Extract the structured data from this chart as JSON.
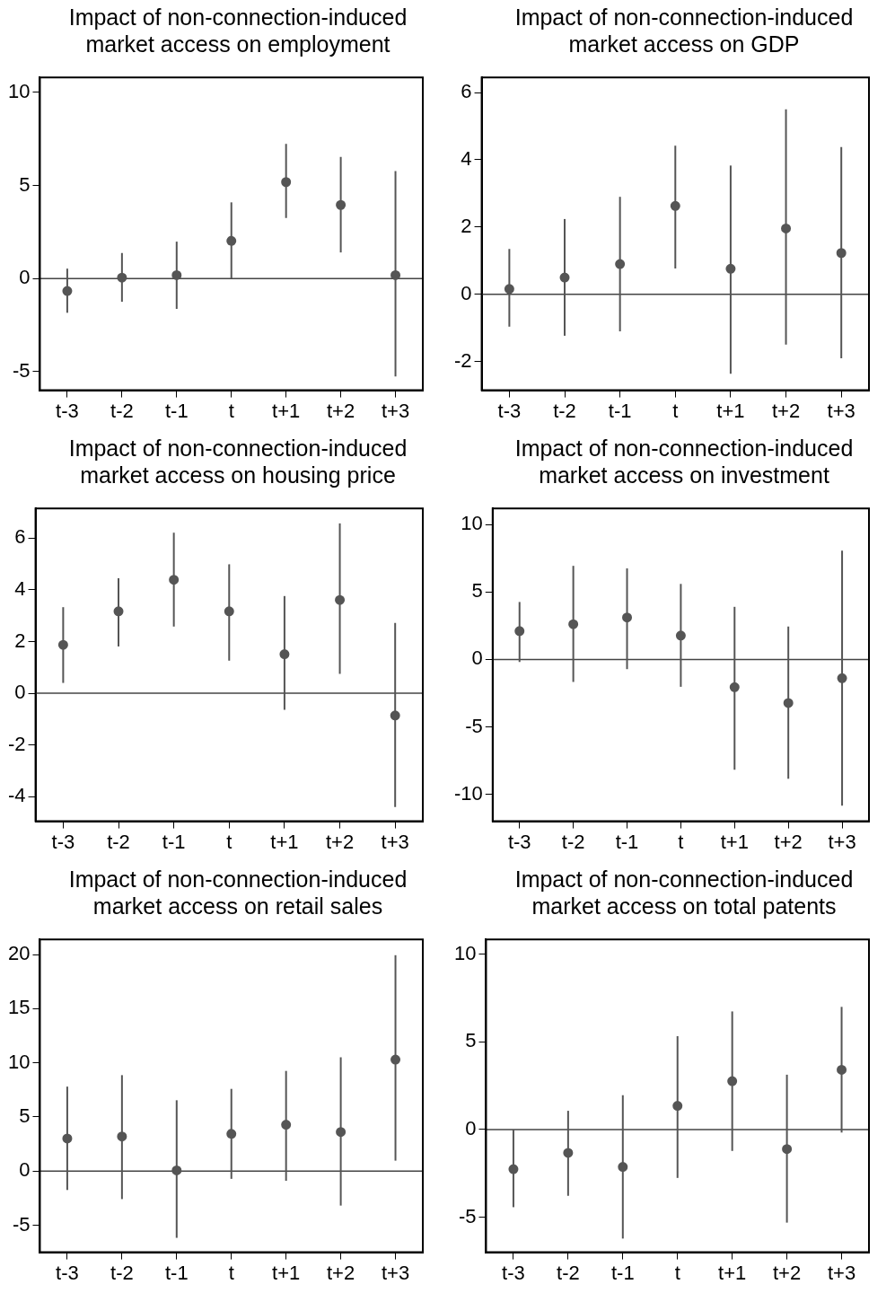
{
  "chart_data": [
    {
      "type": "scatter",
      "title": "Impact of non-connection-induced market access on employment",
      "categories": [
        "t-3",
        "t-2",
        "t-1",
        "t",
        "t+1",
        "t+2",
        "t+3"
      ],
      "marker": "circle",
      "grid": false,
      "ylim": [
        -6,
        10.8
      ],
      "yticks": [
        -5,
        0,
        5,
        10
      ],
      "ref_lines": [
        {
          "axis": "y",
          "value": 0
        }
      ],
      "series": [
        {
          "color": "#555555",
          "values": [
            -0.67,
            0.05,
            0.18,
            2.02,
            5.18,
            3.95,
            0.18
          ],
          "errors": [
            [
              -1.84,
              0.53
            ],
            [
              -1.25,
              1.37
            ],
            [
              -1.63,
              1.98
            ],
            [
              0,
              4.09
            ],
            [
              3.25,
              7.23
            ],
            [
              1.4,
              6.53
            ],
            [
              -5.26,
              5.77
            ]
          ]
        }
      ]
    },
    {
      "type": "scatter",
      "title": "Impact of non-connection-induced market access on GDP",
      "categories": [
        "t-3",
        "t-2",
        "t-1",
        "t",
        "t+1",
        "t+2",
        "t+3"
      ],
      "marker": "circle",
      "grid": false,
      "ylim": [
        -2.85,
        6.45
      ],
      "yticks": [
        -2,
        0,
        2,
        4,
        6
      ],
      "ref_lines": [
        {
          "axis": "y",
          "value": 0
        }
      ],
      "series": [
        {
          "color": "#555555",
          "values": [
            0.16,
            0.5,
            0.9,
            2.63,
            0.76,
            1.96,
            1.23
          ],
          "errors": [
            [
              -0.96,
              1.35
            ],
            [
              -1.23,
              2.24
            ],
            [
              -1.1,
              2.9
            ],
            [
              0.77,
              4.42
            ],
            [
              -2.36,
              3.83
            ],
            [
              -1.49,
              5.5
            ],
            [
              -1.9,
              4.38
            ]
          ]
        }
      ]
    },
    {
      "type": "scatter",
      "title": "Impact of non-connection-induced market access on housing price",
      "categories": [
        "t-3",
        "t-2",
        "t-1",
        "t",
        "t+1",
        "t+2",
        "t+3"
      ],
      "marker": "circle",
      "grid": false,
      "ylim": [
        -4.95,
        7.15
      ],
      "yticks": [
        -4,
        -2,
        0,
        2,
        4,
        6
      ],
      "ref_lines": [
        {
          "axis": "y",
          "value": 0
        }
      ],
      "series": [
        {
          "color": "#555555",
          "values": [
            1.87,
            3.17,
            4.39,
            3.17,
            1.51,
            3.61,
            -0.86
          ],
          "errors": [
            [
              0.4,
              3.33
            ],
            [
              1.81,
              4.45
            ],
            [
              2.58,
              6.21
            ],
            [
              1.26,
              4.99
            ],
            [
              -0.64,
              3.76
            ],
            [
              0.75,
              6.57
            ],
            [
              -4.4,
              2.72
            ]
          ]
        }
      ]
    },
    {
      "type": "scatter",
      "title": "Impact of non-connection-induced market access on investment",
      "categories": [
        "t-3",
        "t-2",
        "t-1",
        "t",
        "t+1",
        "t+2",
        "t+3"
      ],
      "marker": "circle",
      "grid": false,
      "ylim": [
        -12,
        11.2
      ],
      "yticks": [
        -10,
        -5,
        0,
        5,
        10
      ],
      "ref_lines": [
        {
          "axis": "y",
          "value": 0
        }
      ],
      "series": [
        {
          "color": "#555555",
          "values": [
            2.1,
            2.61,
            3.11,
            1.77,
            -2.06,
            -3.23,
            -1.39
          ],
          "errors": [
            [
              -0.19,
              4.26
            ],
            [
              -1.67,
              6.94
            ],
            [
              -0.72,
              6.75
            ],
            [
              -2.03,
              5.6
            ],
            [
              -8.18,
              3.9
            ],
            [
              -8.85,
              2.44
            ],
            [
              -10.84,
              8.06
            ]
          ]
        }
      ]
    },
    {
      "type": "scatter",
      "title": "Impact of non-connection-induced market access on retail sales",
      "categories": [
        "t-3",
        "t-2",
        "t-1",
        "t",
        "t+1",
        "t+2",
        "t+3"
      ],
      "marker": "circle",
      "grid": false,
      "ylim": [
        -7.5,
        21.4
      ],
      "yticks": [
        -5,
        0,
        5,
        10,
        15,
        20
      ],
      "ref_lines": [
        {
          "axis": "y",
          "value": 0
        }
      ],
      "series": [
        {
          "color": "#555555",
          "values": [
            3.01,
            3.19,
            0.06,
            3.43,
            4.28,
            3.61,
            10.3
          ],
          "errors": [
            [
              -1.75,
              7.8
            ],
            [
              -2.59,
              8.86
            ],
            [
              -6.17,
              6.54
            ],
            [
              -0.72,
              7.59
            ],
            [
              -0.9,
              9.25
            ],
            [
              -3.19,
              10.51
            ],
            [
              0.96,
              19.94
            ]
          ]
        }
      ]
    },
    {
      "type": "scatter",
      "title": "Impact of non-connection-induced market access on total patents",
      "categories": [
        "t-3",
        "t-2",
        "t-1",
        "t",
        "t+1",
        "t+2",
        "t+3"
      ],
      "marker": "circle",
      "grid": false,
      "ylim": [
        -7,
        10.85
      ],
      "yticks": [
        -5,
        0,
        5,
        10
      ],
      "ref_lines": [
        {
          "axis": "y",
          "value": 0
        }
      ],
      "series": [
        {
          "color": "#555555",
          "values": [
            -2.26,
            -1.33,
            -2.13,
            1.35,
            2.76,
            -1.11,
            3.41
          ],
          "errors": [
            [
              -4.43,
              0
            ],
            [
              -3.78,
              1.07
            ],
            [
              -6.22,
              1.96
            ],
            [
              -2.76,
              5.33
            ],
            [
              -1.22,
              6.74
            ],
            [
              -5.31,
              3.13
            ],
            [
              -0.17,
              7.0
            ]
          ]
        }
      ]
    }
  ]
}
